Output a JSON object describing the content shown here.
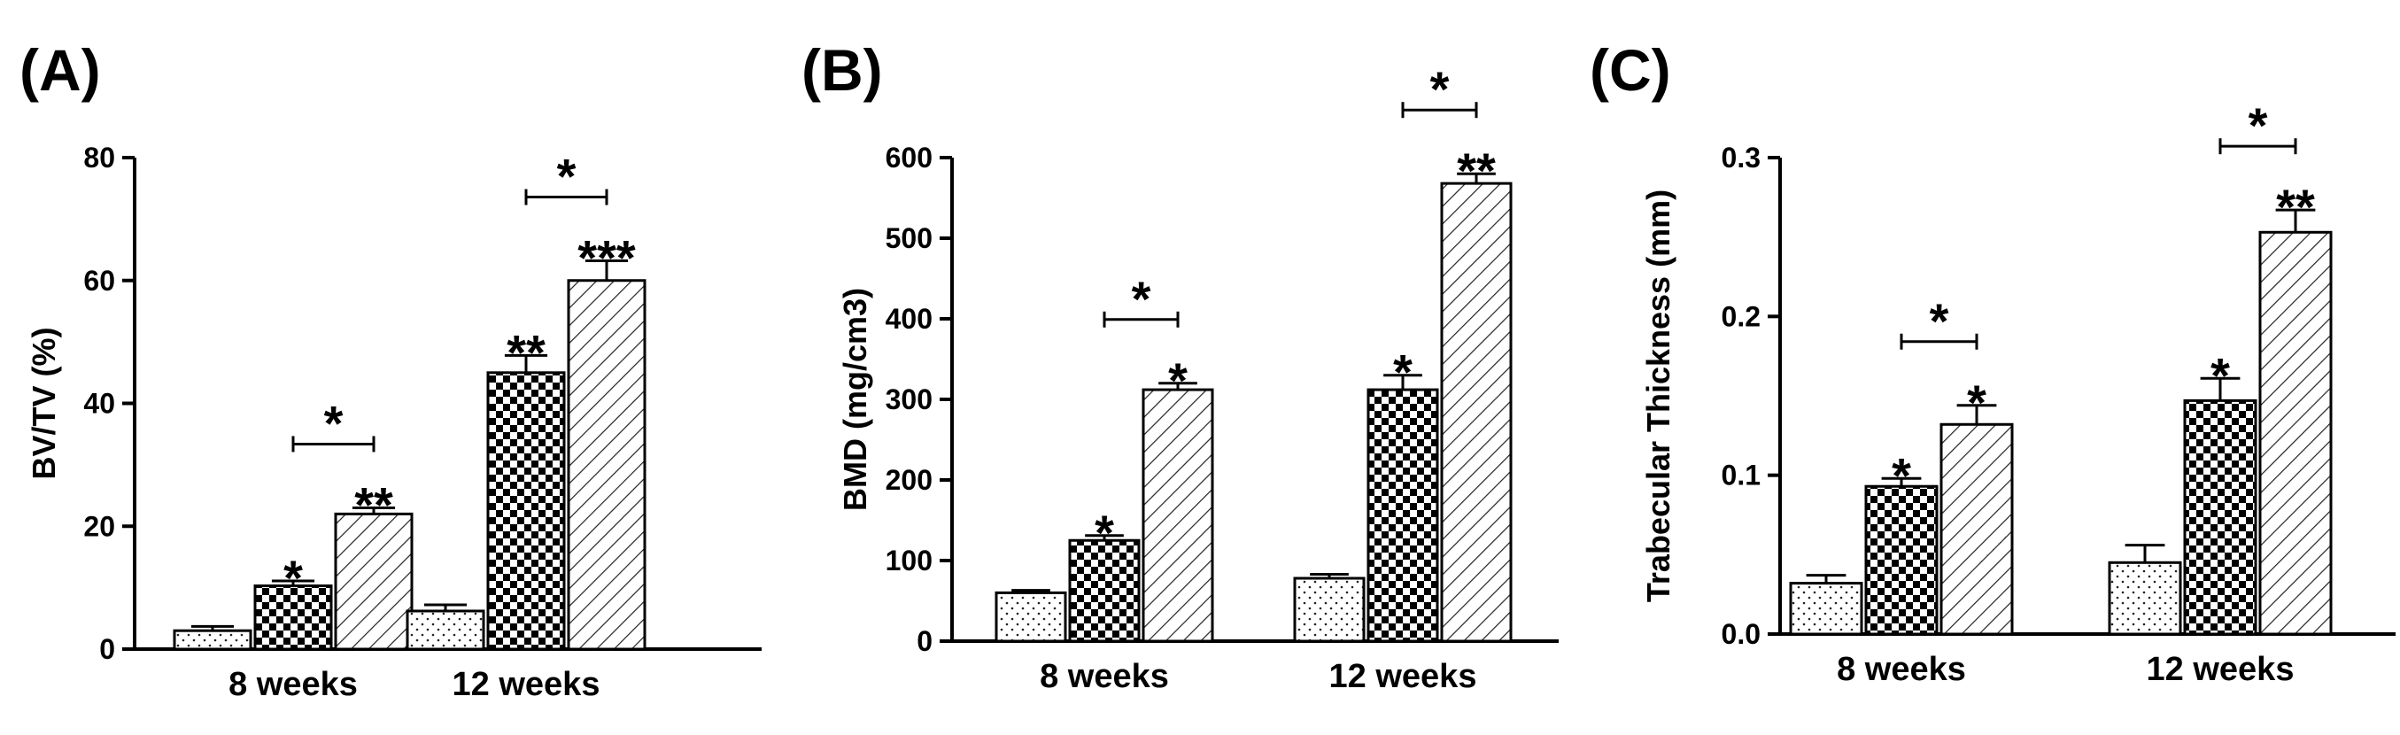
{
  "colors": {
    "ink": "#000000",
    "background": "#ffffff"
  },
  "chart_data": [
    {
      "type": "bar",
      "panel_label": "(A)",
      "categories": [
        "8 weeks",
        "12 weeks"
      ],
      "ylabel": "BV/TV (%)",
      "ylim": [
        0,
        80
      ],
      "yticks": [
        0,
        20,
        40,
        60,
        80
      ],
      "ytick_labels": [
        "0",
        "20",
        "40",
        "60",
        "80"
      ],
      "series": [
        {
          "name": "group-dotted",
          "pattern": "dots",
          "values": [
            3,
            6.2
          ],
          "errors": [
            0.7,
            1
          ],
          "stars": [
            "",
            ""
          ]
        },
        {
          "name": "group-checkered",
          "pattern": "checker",
          "values": [
            10.3,
            45
          ],
          "errors": [
            0.8,
            2.8
          ],
          "stars": [
            "*",
            "**"
          ]
        },
        {
          "name": "group-hatched",
          "pattern": "hatch",
          "values": [
            22,
            60
          ],
          "errors": [
            1,
            3.2
          ],
          "stars": [
            "**",
            "***"
          ]
        }
      ],
      "comparisons": [
        {
          "category": 0,
          "from": "group-checkered",
          "to": "group-hatched",
          "label": "*"
        },
        {
          "category": 1,
          "from": "group-checkered",
          "to": "group-hatched",
          "label": "*"
        }
      ]
    },
    {
      "type": "bar",
      "panel_label": "(B)",
      "categories": [
        "8 weeks",
        "12 weeks"
      ],
      "ylabel": "BMD (mg/cm3)",
      "ylim": [
        0,
        600
      ],
      "yticks": [
        0,
        100,
        200,
        300,
        400,
        500,
        600
      ],
      "ytick_labels": [
        "0",
        "100",
        "200",
        "300",
        "400",
        "500",
        "600"
      ],
      "series": [
        {
          "name": "group-dotted",
          "pattern": "dots",
          "values": [
            60,
            78
          ],
          "errors": [
            3,
            5
          ],
          "stars": [
            "",
            ""
          ]
        },
        {
          "name": "group-checkered",
          "pattern": "checker",
          "values": [
            125,
            312
          ],
          "errors": [
            6,
            18
          ],
          "stars": [
            "*",
            "*"
          ]
        },
        {
          "name": "group-hatched",
          "pattern": "hatch",
          "values": [
            312,
            568
          ],
          "errors": [
            8,
            12
          ],
          "stars": [
            "*",
            "**"
          ]
        }
      ],
      "comparisons": [
        {
          "category": 0,
          "from": "group-checkered",
          "to": "group-hatched",
          "label": "*"
        },
        {
          "category": 1,
          "from": "group-checkered",
          "to": "group-hatched",
          "label": "*"
        }
      ]
    },
    {
      "type": "bar",
      "panel_label": "(C)",
      "categories": [
        "8 weeks",
        "12 weeks"
      ],
      "ylabel": "Trabecular Thickness (mm)",
      "ylim": [
        0,
        0.3
      ],
      "yticks": [
        0,
        0.1,
        0.2,
        0.3
      ],
      "ytick_labels": [
        "0.0",
        "0.1",
        "0.2",
        "0.3"
      ],
      "series": [
        {
          "name": "group-dotted",
          "pattern": "dots",
          "values": [
            0.032,
            0.045
          ],
          "errors": [
            0.005,
            0.011
          ],
          "stars": [
            "",
            ""
          ]
        },
        {
          "name": "group-checkered",
          "pattern": "checker",
          "values": [
            0.093,
            0.147
          ],
          "errors": [
            0.005,
            0.014
          ],
          "stars": [
            "*",
            "*"
          ]
        },
        {
          "name": "group-hatched",
          "pattern": "hatch",
          "values": [
            0.132,
            0.253
          ],
          "errors": [
            0.012,
            0.014
          ],
          "stars": [
            "*",
            "**"
          ]
        }
      ],
      "comparisons": [
        {
          "category": 0,
          "from": "group-checkered",
          "to": "group-hatched",
          "label": "*"
        },
        {
          "category": 1,
          "from": "group-checkered",
          "to": "group-hatched",
          "label": "*"
        }
      ]
    }
  ]
}
